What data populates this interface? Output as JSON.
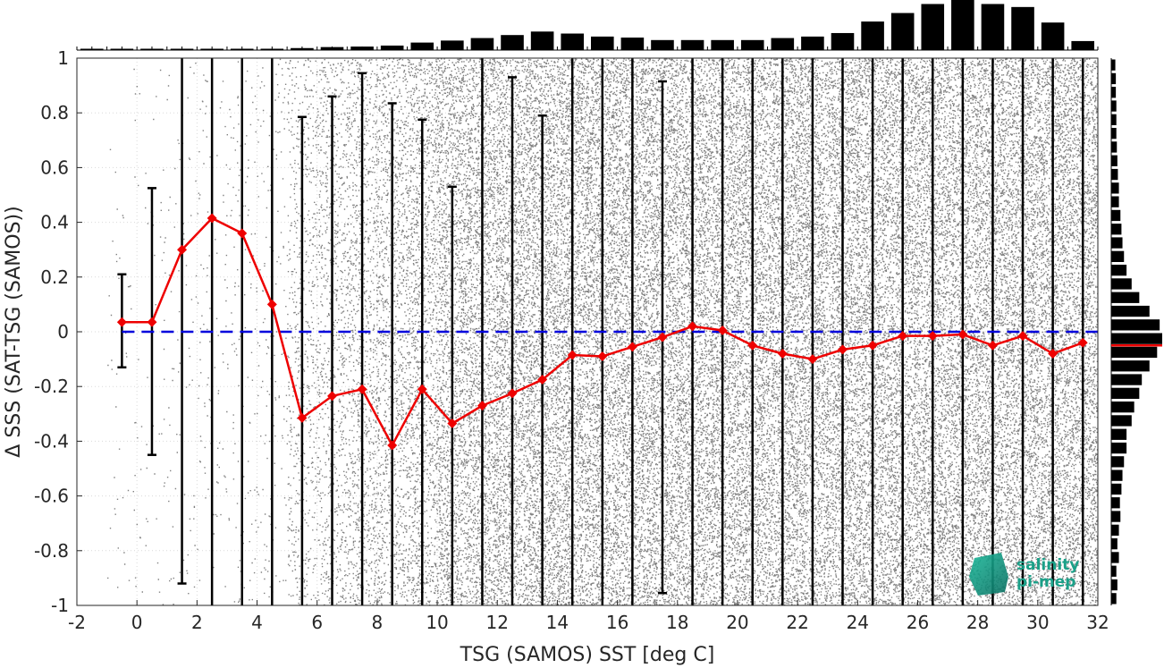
{
  "colors": {
    "scatter": "#808080",
    "mean_line": "#ee0000",
    "zero_line": "#0000dd",
    "error_bar": "#000000",
    "histogram": "#000000",
    "logo": "#1aa088"
  },
  "logo": {
    "line1": "salinity",
    "line2": "pi-mep"
  },
  "chart_data": {
    "type": "scatter",
    "xlabel": "TSG (SAMOS) SST [deg C]",
    "ylabel": "Δ SSS (SAT-TSG (SAMOS))",
    "xlim": [
      -2,
      32
    ],
    "ylim": [
      -1,
      1
    ],
    "xticks": [
      -2,
      0,
      2,
      4,
      6,
      8,
      10,
      12,
      14,
      16,
      18,
      20,
      22,
      24,
      26,
      28,
      30,
      32
    ],
    "yticks": [
      -1,
      -0.8,
      -0.6,
      -0.4,
      -0.2,
      0,
      0.2,
      0.4,
      0.6,
      0.8,
      1
    ],
    "zero_reference": 0,
    "grid": true,
    "scatter_density": {
      "description_bins_x": [
        -0.5,
        0.5,
        1.5,
        2.5,
        3.5,
        4.5,
        5.5,
        6.5,
        7.5,
        8.5,
        9.5,
        10.5,
        11.5,
        12.5,
        13.5,
        14.5,
        15.5,
        16.5,
        17.5,
        18.5,
        19.5,
        20.5,
        21.5,
        22.5,
        23.5,
        24.5,
        25.5,
        26.5,
        27.5,
        28.5,
        29.5,
        30.5,
        31.5
      ],
      "relative_density": [
        0.02,
        0.02,
        0.03,
        0.04,
        0.05,
        0.06,
        0.25,
        0.35,
        0.45,
        0.5,
        0.6,
        0.8,
        0.85,
        0.9,
        0.95,
        0.95,
        0.95,
        0.95,
        0.95,
        0.95,
        0.95,
        0.95,
        0.95,
        0.95,
        0.95,
        0.95,
        0.95,
        0.95,
        0.95,
        0.95,
        0.95,
        0.95,
        0.95
      ]
    },
    "series": [
      {
        "x": [
          -0.5,
          0.5,
          1.5,
          2.5,
          3.5,
          4.5,
          5.5,
          6.5,
          7.5,
          8.5,
          9.5,
          10.5,
          11.5,
          12.5,
          13.5,
          14.5,
          15.5,
          16.5,
          17.5,
          18.5,
          19.5,
          20.5,
          21.5,
          22.5,
          23.5,
          24.5,
          25.5,
          26.5,
          27.5,
          28.5,
          29.5,
          30.5,
          31.5
        ],
        "mean": [
          0.035,
          0.035,
          0.3,
          0.415,
          0.36,
          0.1,
          -0.315,
          -0.235,
          -0.21,
          -0.415,
          -0.21,
          -0.335,
          -0.27,
          -0.225,
          -0.175,
          -0.085,
          -0.09,
          -0.055,
          -0.02,
          0.02,
          0.005,
          -0.05,
          -0.08,
          -0.1,
          -0.065,
          -0.05,
          -0.015,
          -0.015,
          -0.01,
          -0.05,
          -0.015,
          -0.08,
          -0.04
        ],
        "err_low": [
          -0.13,
          -0.45,
          -0.92,
          -1,
          -1,
          -1,
          -1,
          -1,
          -1,
          -1,
          -1,
          -1,
          -1,
          -1,
          -1,
          -1,
          -1,
          -1,
          -0.955,
          -1,
          -1,
          -1,
          -1,
          -1,
          -1,
          -1,
          -1,
          -1,
          -1,
          -1,
          -1,
          -1,
          -1
        ],
        "err_high": [
          0.21,
          0.525,
          1,
          1,
          1,
          1,
          0.785,
          0.86,
          0.945,
          0.835,
          0.775,
          0.53,
          1,
          0.93,
          0.79,
          1,
          1,
          1,
          0.915,
          1,
          1,
          1,
          1,
          1,
          1,
          1,
          1,
          1,
          1,
          1,
          1,
          1,
          1
        ]
      }
    ],
    "top_histogram": {
      "x": [
        -1.5,
        -0.5,
        0.5,
        1.5,
        2.5,
        3.5,
        4.5,
        5.5,
        6.5,
        7.5,
        8.5,
        9.5,
        10.5,
        11.5,
        12.5,
        13.5,
        14.5,
        15.5,
        16.5,
        17.5,
        18.5,
        19.5,
        20.5,
        21.5,
        22.5,
        23.5,
        24.5,
        25.5,
        26.5,
        27.5,
        28.5,
        29.5,
        30.5,
        31.5
      ],
      "relative_counts": [
        0.005,
        0.005,
        0.005,
        0.01,
        0.01,
        0.015,
        0.02,
        0.04,
        0.06,
        0.07,
        0.09,
        0.15,
        0.19,
        0.24,
        0.3,
        0.37,
        0.33,
        0.27,
        0.25,
        0.2,
        0.2,
        0.2,
        0.2,
        0.24,
        0.27,
        0.34,
        0.57,
        0.74,
        0.92,
        1.0,
        0.92,
        0.86,
        0.55,
        0.18
      ]
    },
    "right_histogram": {
      "y": [
        -0.975,
        -0.925,
        -0.875,
        -0.825,
        -0.775,
        -0.725,
        -0.675,
        -0.625,
        -0.575,
        -0.525,
        -0.475,
        -0.425,
        -0.375,
        -0.325,
        -0.275,
        -0.225,
        -0.175,
        -0.125,
        -0.075,
        -0.025,
        0.025,
        0.075,
        0.125,
        0.175,
        0.225,
        0.275,
        0.325,
        0.375,
        0.425,
        0.475,
        0.525,
        0.575,
        0.625,
        0.675,
        0.725,
        0.775,
        0.825,
        0.875,
        0.925,
        0.975
      ],
      "relative_counts": [
        0.1,
        0.12,
        0.1,
        0.15,
        0.12,
        0.15,
        0.18,
        0.17,
        0.2,
        0.22,
        0.25,
        0.3,
        0.3,
        0.4,
        0.45,
        0.55,
        0.6,
        0.75,
        0.9,
        1.0,
        0.95,
        0.75,
        0.55,
        0.4,
        0.3,
        0.25,
        0.22,
        0.2,
        0.18,
        0.15,
        0.15,
        0.13,
        0.12,
        0.11,
        0.1,
        0.1,
        0.1,
        0.09,
        0.09,
        0.08
      ],
      "mean_marker": -0.05
    }
  }
}
